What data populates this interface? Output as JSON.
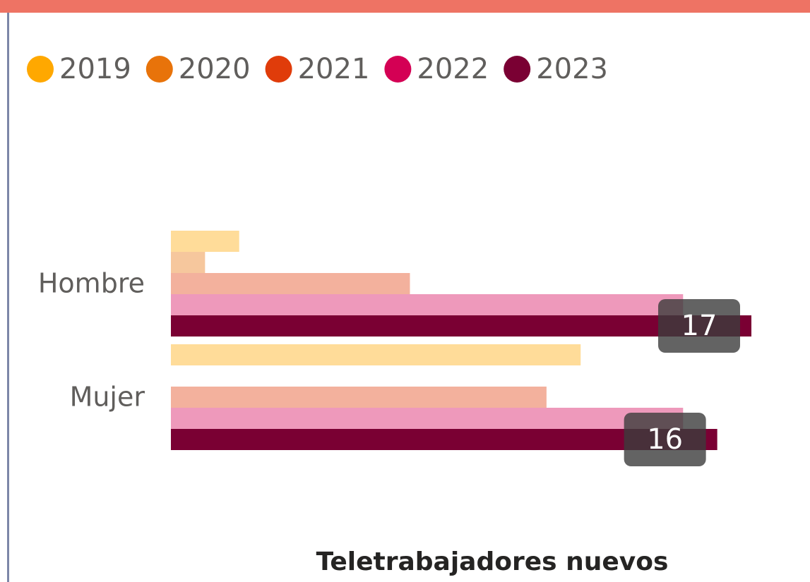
{
  "chart_data": {
    "type": "barh",
    "title": "Teletrabajadores nuevos",
    "categories": [
      "Hombre",
      "Mujer"
    ],
    "series": [
      {
        "name": "2019",
        "color": "#FFA800",
        "values": [
          2,
          12
        ]
      },
      {
        "name": "2020",
        "color": "#E8730A",
        "values": [
          1,
          null
        ]
      },
      {
        "name": "2021",
        "color": "#E03C0A",
        "values": [
          7,
          11
        ]
      },
      {
        "name": "2022",
        "color": "#D40054",
        "values": [
          15,
          15
        ]
      },
      {
        "name": "2023",
        "color": "#7A0033",
        "values": [
          17,
          16
        ]
      }
    ],
    "xlim": [
      0,
      17
    ]
  }
}
